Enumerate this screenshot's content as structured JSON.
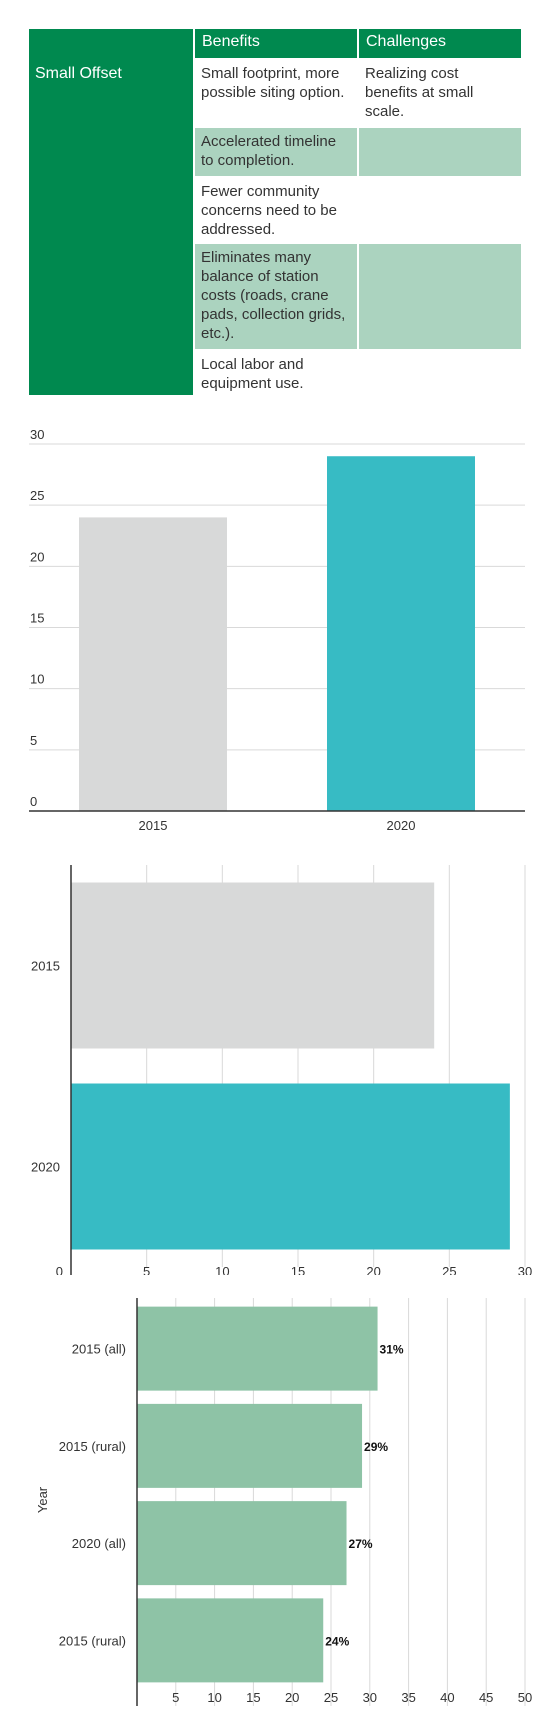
{
  "table": {
    "row_label": "Small Offset",
    "headers": [
      "Benefits",
      "Challenges"
    ],
    "rows": [
      {
        "benefit": "Small footprint, more possible siting option.",
        "challenge": "Realizing cost benefits at small scale."
      },
      {
        "benefit": "Accelerated timeline to completion.",
        "challenge": ""
      },
      {
        "benefit": "Fewer community concerns need to be addressed.",
        "challenge": ""
      },
      {
        "benefit": "Eliminates many balance of station costs (roads, crane pads, collection grids, etc.).",
        "challenge": ""
      },
      {
        "benefit": "Local labor and equipment use.",
        "challenge": ""
      }
    ]
  },
  "colors": {
    "green": "#00894f",
    "light_green": "#abd3bf",
    "gray_bar": "#d8d9d9",
    "teal_bar": "#37bbc4",
    "sage_bar": "#8ec3a6"
  },
  "chart_data": [
    {
      "type": "bar",
      "orientation": "vertical",
      "categories": [
        "2015",
        "2020"
      ],
      "values": [
        24,
        29
      ],
      "ylim": [
        0,
        30
      ],
      "yticks": [
        0,
        5,
        10,
        15,
        20,
        25,
        30
      ],
      "grid": true,
      "xlabel": "",
      "ylabel": "",
      "title": ""
    },
    {
      "type": "bar",
      "orientation": "horizontal",
      "categories": [
        "2015",
        "2020"
      ],
      "values": [
        24,
        29
      ],
      "xlim": [
        0,
        30
      ],
      "xticks": [
        0,
        5,
        10,
        15,
        20,
        25,
        30
      ],
      "grid": true,
      "xlabel": "",
      "ylabel": "",
      "title": ""
    },
    {
      "type": "bar",
      "orientation": "horizontal",
      "categories": [
        "2015 (all)",
        "2015 (rural)",
        "2020 (all)",
        "2015 (rural)"
      ],
      "values": [
        31,
        29,
        27,
        24
      ],
      "data_labels": [
        "31%",
        "29%",
        "27%",
        "24%"
      ],
      "xlim": [
        0,
        50
      ],
      "xticks": [
        5,
        10,
        15,
        20,
        25,
        30,
        35,
        40,
        45,
        50
      ],
      "grid": true,
      "ylabel": "Year",
      "xlabel": "",
      "title": ""
    }
  ]
}
